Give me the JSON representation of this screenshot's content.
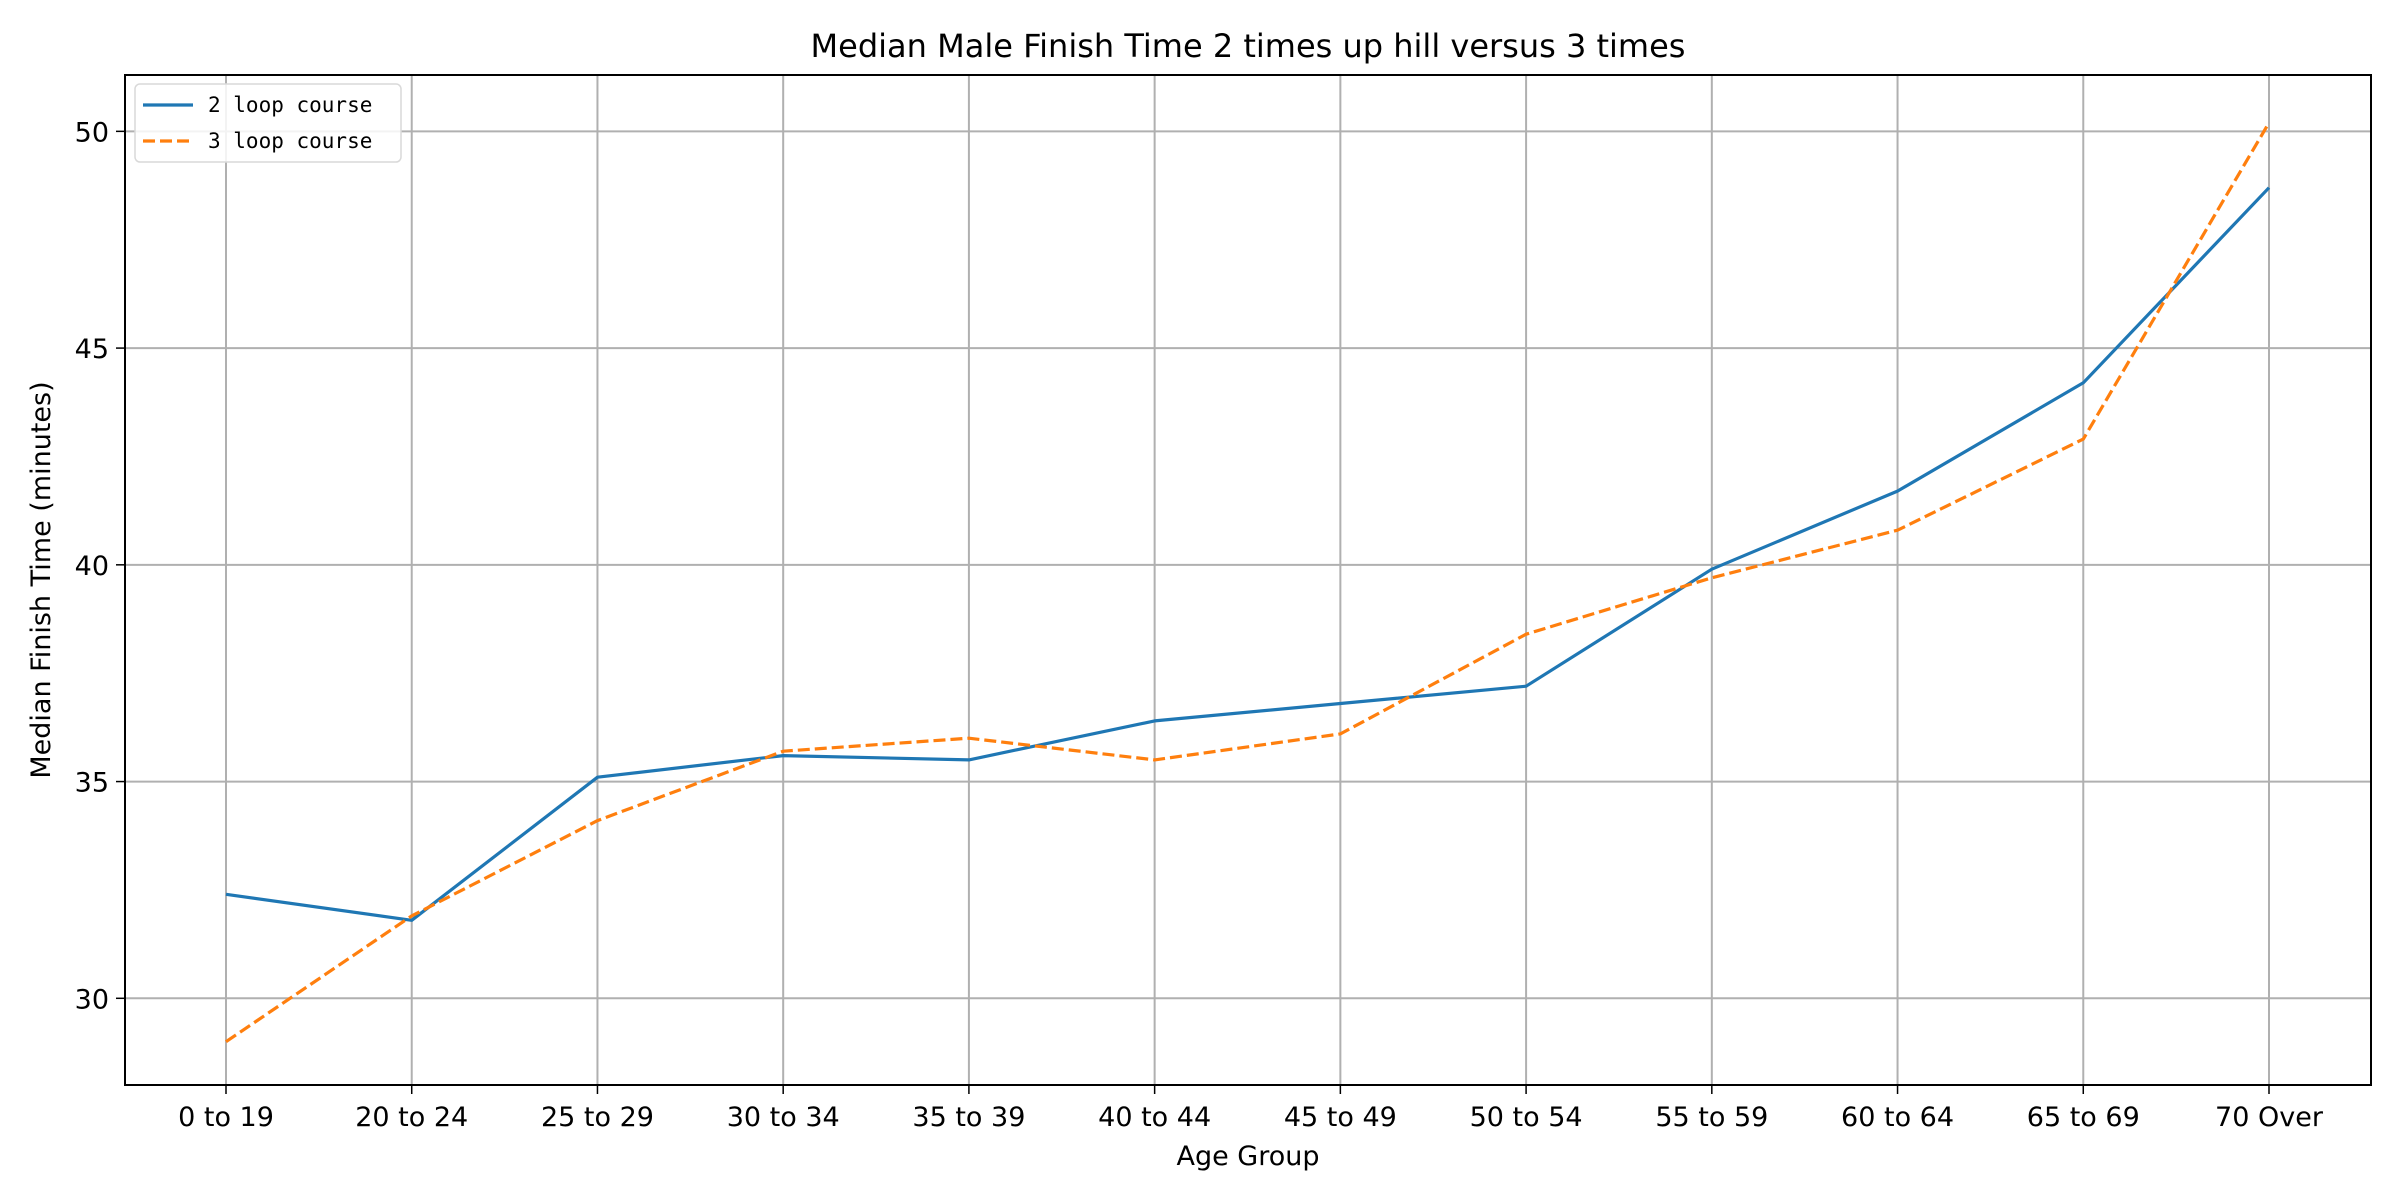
{
  "chart_data": {
    "type": "line",
    "title": "Median Male Finish Time 2 times up hill versus 3 times",
    "xlabel": "Age Group",
    "ylabel": "Median Finish Time (minutes)",
    "categories": [
      "0 to 19",
      "20 to 24",
      "25 to 29",
      "30 to 34",
      "35 to 39",
      "40 to 44",
      "45 to 49",
      "50 to 54",
      "55 to 59",
      "60 to 64",
      "65 to 69",
      "70 Over"
    ],
    "ylim": [
      28,
      51.3
    ],
    "yticks": [
      30,
      35,
      40,
      45,
      50
    ],
    "grid": true,
    "legend_position": "top-left",
    "series": [
      {
        "name": "2 loop course",
        "color": "#1f77b4",
        "style": "solid",
        "values": [
          32.4,
          31.8,
          35.1,
          35.6,
          35.5,
          36.4,
          36.8,
          37.2,
          39.9,
          41.7,
          44.2,
          48.7
        ]
      },
      {
        "name": "3 loop course",
        "color": "#ff7f0e",
        "style": "dashed",
        "values": [
          29.0,
          31.9,
          34.1,
          35.7,
          36.0,
          35.5,
          36.1,
          38.4,
          39.7,
          40.8,
          42.9,
          50.2
        ]
      }
    ]
  }
}
